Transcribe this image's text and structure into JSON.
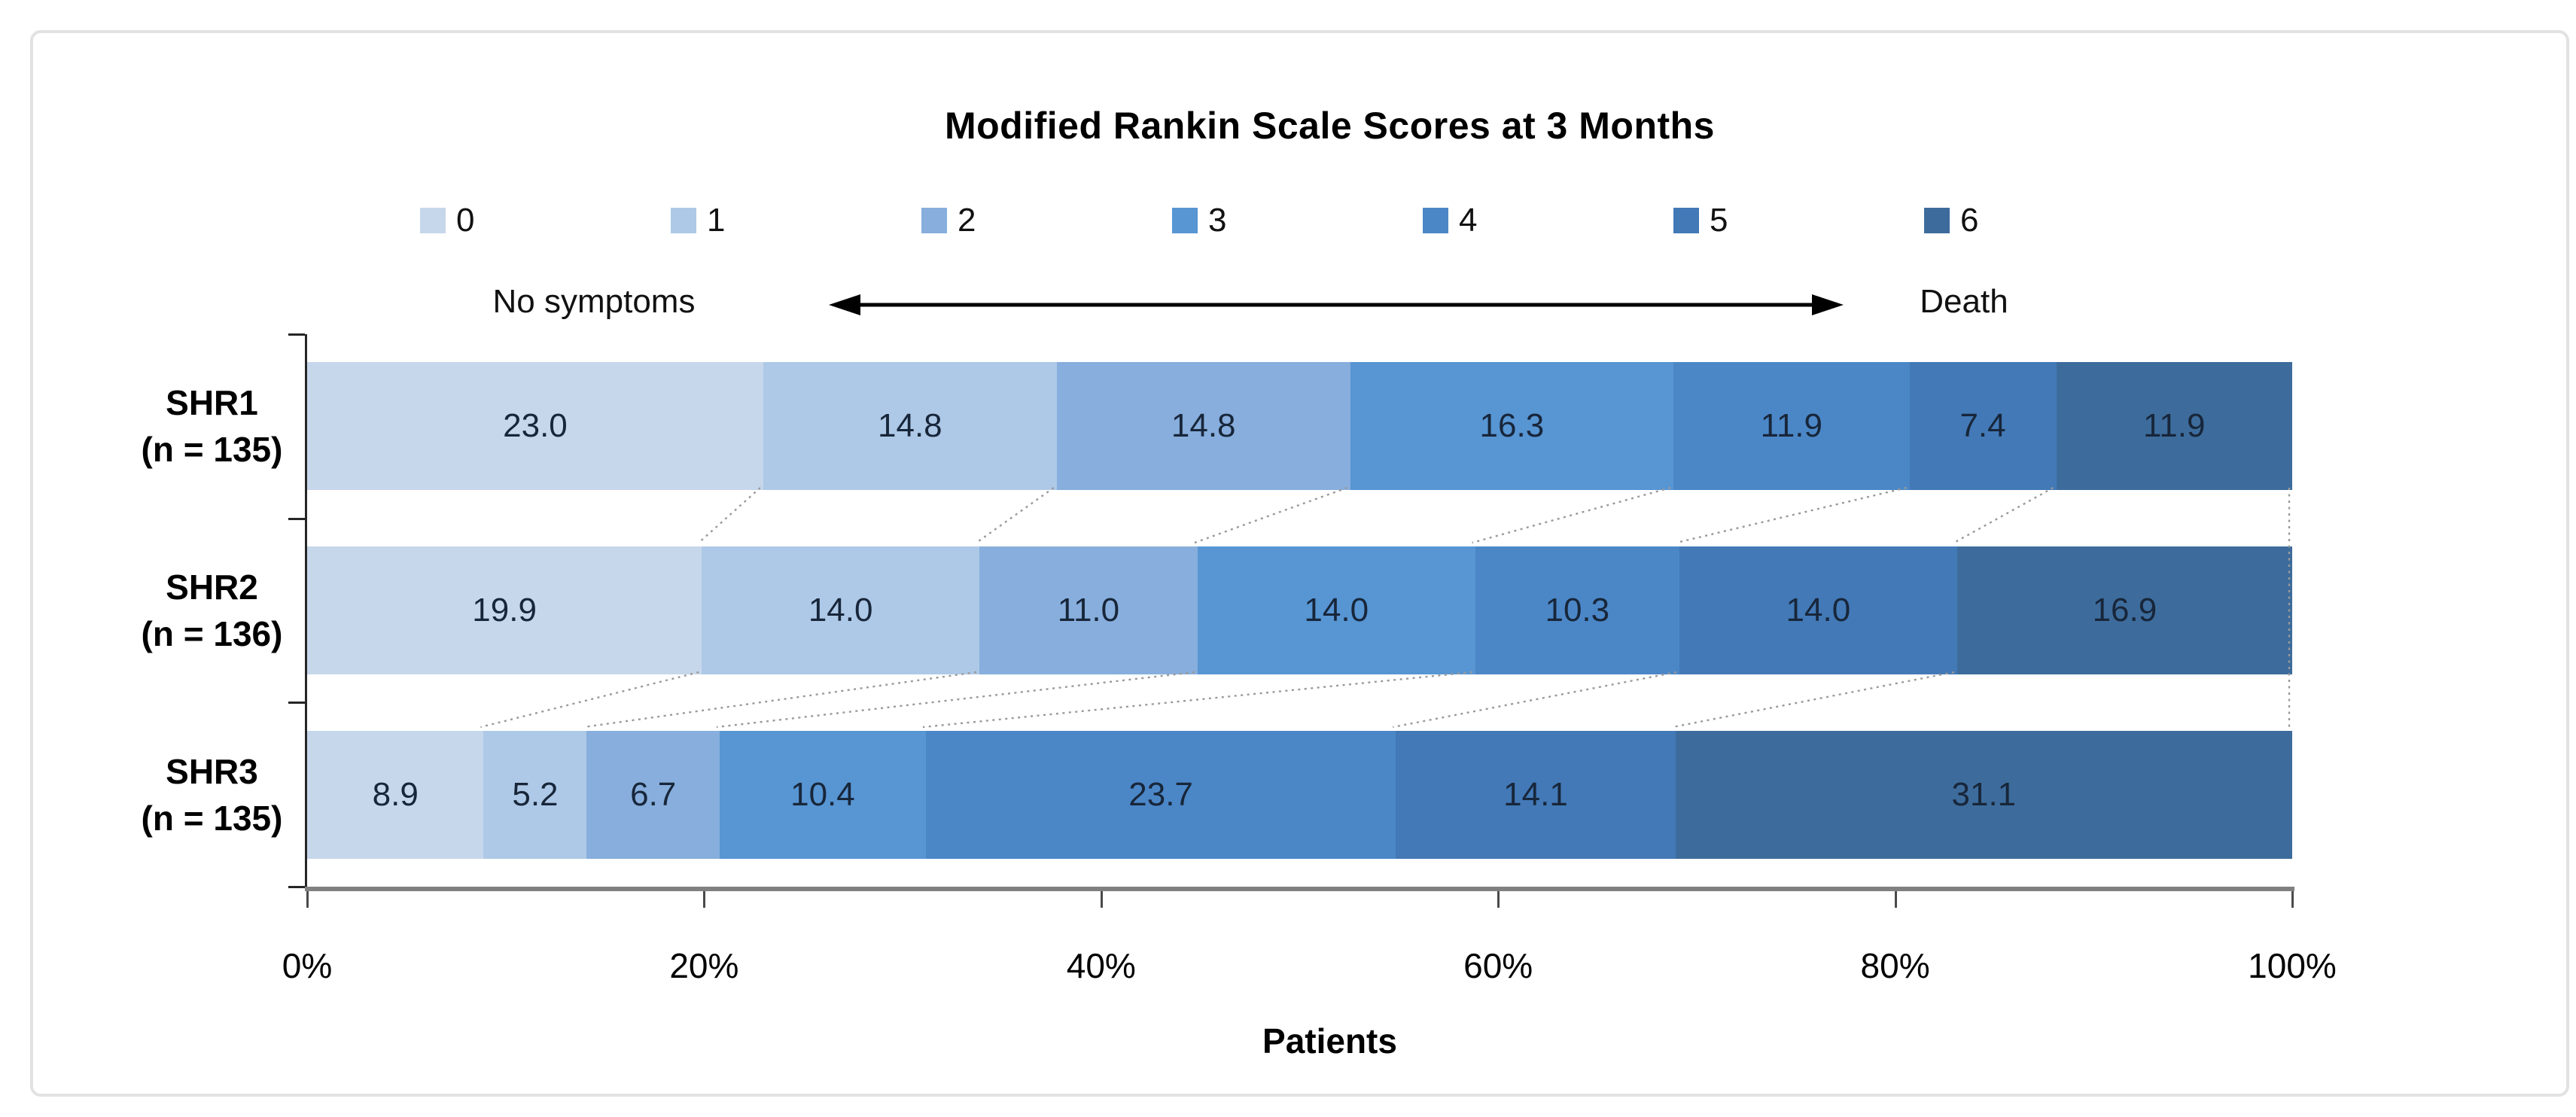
{
  "chart_data": {
    "type": "bar",
    "orientation": "horizontal-stacked",
    "title": "Modified Rankin Scale Scores at 3 Months",
    "xlabel": "Patients",
    "xlim": [
      0,
      100
    ],
    "x_ticks": [
      "0%",
      "20%",
      "40%",
      "60%",
      "80%",
      "100%"
    ],
    "legend": {
      "position": "top",
      "labels": [
        "0",
        "1",
        "2",
        "3",
        "4",
        "5",
        "6"
      ]
    },
    "series_colors": [
      "#C7D7EB",
      "#AEC9E7",
      "#87AEDC",
      "#5795D3",
      "#4B87C7",
      "#4279B6",
      "#3D6C9C"
    ],
    "scale_annotation": {
      "left": "No symptoms",
      "right": "Death"
    },
    "rows": [
      {
        "label": "SHR1",
        "sublabel": "(n = 135)",
        "values": [
          23.0,
          14.8,
          14.8,
          16.3,
          11.9,
          7.4,
          11.9
        ]
      },
      {
        "label": "SHR2",
        "sublabel": "(n = 136)",
        "values": [
          19.9,
          14.0,
          11.0,
          14.0,
          10.3,
          14.0,
          16.9
        ]
      },
      {
        "label": "SHR3",
        "sublabel": "(n = 135)",
        "values": [
          8.9,
          5.2,
          6.7,
          10.4,
          23.7,
          14.1,
          31.1
        ]
      }
    ],
    "value_format": "one-decimal",
    "grid": false
  }
}
